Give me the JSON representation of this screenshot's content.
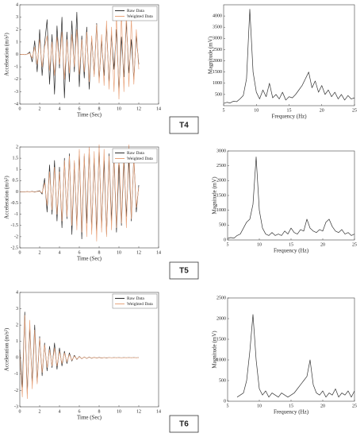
{
  "chart_data": [
    {
      "type": "line",
      "xlabel": "Time (Sec)",
      "ylabel": "Acceleration (m/s²)",
      "legend": "upper right",
      "xlim": [
        0,
        14
      ],
      "xticks": [
        0,
        2,
        4,
        6,
        8,
        10,
        12,
        14
      ],
      "ylim": [
        -4,
        4
      ],
      "yticks": [
        -4,
        -3,
        -2,
        -1,
        0,
        1,
        2,
        3,
        4
      ],
      "x": [
        0,
        0.25,
        0.5,
        0.75,
        1,
        1.25,
        1.5,
        1.75,
        2,
        2.25,
        2.5,
        2.75,
        3,
        3.25,
        3.5,
        3.75,
        4,
        4.25,
        4.5,
        4.75,
        5,
        5.25,
        5.5,
        5.75,
        6,
        6.25,
        6.5,
        6.75,
        7,
        7.25,
        7.5,
        7.75,
        8,
        8.25,
        8.5,
        8.75,
        9,
        9.25,
        9.5,
        9.75,
        10,
        10.25,
        10.5,
        10.75,
        11,
        11.25,
        11.5,
        11.75,
        12
      ],
      "series": [
        {
          "name": "Raw Data",
          "color": "#2b2b2b",
          "values": [
            0,
            0.01,
            -0.02,
            0.03,
            0.2,
            -0.6,
            1.1,
            -1.4,
            2.0,
            -1.7,
            0.9,
            2.8,
            -2.4,
            1.6,
            -3.2,
            2.3,
            -1.1,
            3.0,
            -3.5,
            1.8,
            -2.2,
            2.7,
            -1.4,
            3.4,
            -2.6,
            1.5,
            -1.9,
            2.2,
            -2.8,
            1.3,
            -1.6,
            2.5,
            -2.1,
            1.1,
            -1.7,
            2.3,
            -2.4,
            1.6,
            -1.2,
            2.0,
            -2.9,
            1.4,
            -1.8,
            2.6,
            -1.5,
            1.2,
            -2.0,
            1.5,
            -0.8
          ]
        },
        {
          "name": "Weighted Data",
          "color": "#e9a47c",
          "values": [
            0,
            0.01,
            -0.01,
            0.02,
            0.1,
            -0.3,
            0.6,
            -0.8,
            1.2,
            -1.0,
            0.6,
            1.5,
            -1.3,
            1.0,
            -1.7,
            1.4,
            -0.8,
            1.8,
            -2.0,
            1.2,
            -1.5,
            1.6,
            -1.0,
            2.0,
            -1.6,
            1.2,
            -1.4,
            1.8,
            -2.2,
            1.5,
            -1.8,
            2.4,
            -2.3,
            1.6,
            -2.5,
            2.7,
            -2.8,
            2.2,
            -3.0,
            3.2,
            -3.6,
            3.5,
            -3.0,
            3.4,
            -2.6,
            2.9,
            -2.4,
            2.0,
            -1.2
          ]
        }
      ]
    },
    {
      "type": "line",
      "xlabel": "Frequency (Hz)",
      "ylabel": "Magnitude (mV)",
      "color": "#333333",
      "xlim": [
        5,
        25
      ],
      "xticks": [
        5,
        10,
        15,
        20,
        25
      ],
      "ylim": [
        0,
        4500
      ],
      "yticks": [
        500,
        1000,
        1500,
        2000,
        2500,
        3000,
        3500,
        4000
      ],
      "x": [
        5,
        5.5,
        6,
        6.5,
        7,
        7.5,
        8,
        8.5,
        9,
        9.5,
        10,
        10.5,
        11,
        11.5,
        12,
        12.5,
        13,
        13.5,
        14,
        14.5,
        15,
        15.5,
        16,
        16.5,
        17,
        17.5,
        18,
        18.5,
        19,
        19.5,
        20,
        20.5,
        21,
        21.5,
        22,
        22.5,
        23,
        23.5,
        24,
        24.5,
        25
      ],
      "values": [
        100,
        150,
        120,
        200,
        180,
        300,
        450,
        1200,
        4300,
        1500,
        600,
        300,
        700,
        400,
        1000,
        350,
        500,
        300,
        600,
        250,
        400,
        350,
        500,
        700,
        900,
        1200,
        1500,
        800,
        1100,
        600,
        900,
        500,
        700,
        400,
        600,
        300,
        500,
        250,
        450,
        300,
        350
      ]
    },
    {
      "type": "line",
      "xlabel": "Time (Sec)",
      "ylabel": "Acceleration (m/s²)",
      "legend": "upper right",
      "xlim": [
        0,
        14
      ],
      "xticks": [
        0,
        2,
        4,
        6,
        8,
        10,
        12,
        14
      ],
      "ylim": [
        -2.5,
        2
      ],
      "yticks": [
        -2.5,
        -2,
        -1.5,
        -1,
        -0.5,
        0,
        0.5,
        1,
        1.5,
        2
      ],
      "x": [
        0,
        0.25,
        0.5,
        0.75,
        1,
        1.25,
        1.5,
        1.75,
        2,
        2.25,
        2.5,
        2.75,
        3,
        3.25,
        3.5,
        3.75,
        4,
        4.25,
        4.5,
        4.75,
        5,
        5.25,
        5.5,
        5.75,
        6,
        6.25,
        6.5,
        6.75,
        7,
        7.25,
        7.5,
        7.75,
        8,
        8.25,
        8.5,
        8.75,
        9,
        9.25,
        9.5,
        9.75,
        10,
        10.25,
        10.5,
        10.75,
        11,
        11.25,
        11.5,
        11.75,
        12
      ],
      "series": [
        {
          "name": "Raw Data",
          "color": "#2b2b2b",
          "values": [
            0,
            0,
            0,
            0.01,
            0,
            0.02,
            -0.01,
            0.02,
            0.05,
            -0.1,
            0.6,
            -0.9,
            1.2,
            -1.0,
            1.4,
            -1.3,
            1.1,
            -1.6,
            1.5,
            -1.2,
            1.7,
            -1.9,
            1.3,
            -1.5,
            1.8,
            -2.1,
            1.6,
            -1.4,
            1.9,
            -1.7,
            1.5,
            -1.8,
            2.0,
            -1.6,
            1.4,
            -1.9,
            1.7,
            -1.3,
            1.6,
            -1.8,
            1.2,
            -1.5,
            1.4,
            -1.1,
            1.5,
            -1.3,
            1.6,
            -0.9,
            0.3
          ]
        },
        {
          "name": "Weighted Data",
          "color": "#e9a47c",
          "values": [
            0,
            0,
            0,
            0.01,
            0,
            0.01,
            0,
            0.01,
            0.03,
            -0.05,
            0.4,
            -0.6,
            0.9,
            -0.8,
            1.1,
            -1.0,
            0.9,
            -1.3,
            1.4,
            -1.1,
            1.6,
            -1.5,
            1.4,
            -1.7,
            1.9,
            -1.8,
            1.7,
            -2.0,
            2.0,
            -1.9,
            1.8,
            -2.2,
            2.1,
            -1.8,
            1.9,
            -2.0,
            1.6,
            -1.7,
            1.8,
            -1.6,
            1.9,
            -1.4,
            1.8,
            -1.6,
            2.1,
            -1.2,
            1.5,
            -0.7,
            0.2
          ]
        }
      ]
    },
    {
      "type": "line",
      "xlabel": "Frequency (Hz)",
      "ylabel": "Magnitude (mV)",
      "color": "#333333",
      "xlim": [
        5,
        25
      ],
      "xticks": [
        5,
        10,
        15,
        20,
        25
      ],
      "ylim": [
        0,
        3000
      ],
      "yticks": [
        0,
        500,
        1000,
        1500,
        2000,
        2500,
        3000
      ],
      "x": [
        5,
        5.5,
        6,
        6.5,
        7,
        7.5,
        8,
        8.5,
        9,
        9.5,
        10,
        10.5,
        11,
        11.5,
        12,
        12.5,
        13,
        13.5,
        14,
        14.5,
        15,
        15.5,
        16,
        16.5,
        17,
        17.5,
        18,
        18.5,
        19,
        19.5,
        20,
        20.5,
        21,
        21.5,
        22,
        22.5,
        23,
        23.5,
        24,
        24.5,
        25
      ],
      "values": [
        50,
        80,
        60,
        150,
        200,
        400,
        600,
        700,
        1200,
        2800,
        1000,
        400,
        200,
        150,
        250,
        150,
        200,
        150,
        300,
        200,
        400,
        250,
        200,
        350,
        300,
        700,
        400,
        300,
        250,
        350,
        300,
        600,
        700,
        450,
        300,
        250,
        350,
        200,
        250,
        150,
        200
      ]
    },
    {
      "type": "line",
      "xlabel": "Time (Sec)",
      "ylabel": "Acceleration (m/s²)",
      "legend": "upper right",
      "xlim": [
        0,
        14
      ],
      "xticks": [
        0,
        2,
        4,
        6,
        8,
        10,
        12,
        14
      ],
      "ylim": [
        -3,
        4
      ],
      "yticks": [
        -3,
        -2,
        -1,
        0,
        1,
        2,
        3,
        4
      ],
      "x": [
        0,
        0.25,
        0.5,
        0.75,
        1,
        1.25,
        1.5,
        1.75,
        2,
        2.25,
        2.5,
        2.75,
        3,
        3.25,
        3.5,
        3.75,
        4,
        4.25,
        4.5,
        4.75,
        5,
        5.25,
        5.5,
        5.75,
        6,
        6.25,
        6.5,
        6.75,
        7,
        7.25,
        7.5,
        7.75,
        8,
        8.25,
        8.5,
        8.75,
        9,
        9.25,
        9.5,
        9.75,
        10,
        10.25,
        10.5,
        10.75,
        11,
        11.25,
        11.5,
        11.75,
        12
      ],
      "series": [
        {
          "name": "Raw Data",
          "color": "#2b2b2b",
          "values": [
            0.5,
            -1.8,
            2.8,
            -2.2,
            1.9,
            -1.6,
            2.0,
            -1.5,
            1.3,
            -1.1,
            0.9,
            -0.8,
            0.7,
            -0.6,
            0.9,
            -0.7,
            0.6,
            -0.5,
            0.4,
            -0.35,
            0.3,
            -0.2,
            0.15,
            -0.1,
            0.08,
            -0.06,
            0.05,
            -0.04,
            0.04,
            -0.03,
            0.03,
            -0.02,
            0.02,
            -0.02,
            0.01,
            -0.01,
            0.01,
            0,
            0.01,
            0,
            0.01,
            0,
            0.01,
            0,
            0.01,
            0,
            0.01,
            0,
            0.01
          ]
        },
        {
          "name": "Weighted Data",
          "color": "#e9a47c",
          "values": [
            0.3,
            -2.4,
            2.6,
            -2.5,
            2.3,
            -1.9,
            1.7,
            -1.6,
            1.2,
            -0.9,
            0.8,
            -0.6,
            0.5,
            -0.5,
            0.6,
            -0.5,
            0.4,
            -0.35,
            0.3,
            -0.25,
            0.2,
            -0.15,
            0.1,
            -0.08,
            0.06,
            -0.05,
            0.04,
            -0.03,
            0.03,
            -0.02,
            0.02,
            -0.01,
            0.01,
            -0.01,
            0.01,
            0,
            0.01,
            0,
            0,
            0.01,
            0,
            0,
            0,
            0.01,
            0,
            0.01,
            0,
            0.01,
            0
          ]
        }
      ]
    },
    {
      "type": "line",
      "xlabel": "Frequency (Hz)",
      "ylabel": "Magnitude (mV)",
      "color": "#333333",
      "xlim": [
        5,
        25
      ],
      "xticks": [
        5,
        10,
        15,
        20,
        25
      ],
      "ylim": [
        0,
        2500
      ],
      "yticks": [
        0,
        500,
        1000,
        1500,
        2000,
        2500
      ],
      "x": [
        5,
        5.5,
        6,
        6.5,
        7,
        7.5,
        8,
        8.5,
        9,
        9.5,
        10,
        10.5,
        11,
        11.5,
        12,
        12.5,
        13,
        13.5,
        14,
        14.5,
        15,
        15.5,
        16,
        16.5,
        17,
        17.5,
        18,
        18.5,
        19,
        19.5,
        20,
        20.5,
        21,
        21.5,
        22,
        22.5,
        23,
        23.5,
        24,
        24.5,
        25
      ],
      "values": [
        null,
        null,
        null,
        100,
        150,
        200,
        500,
        1200,
        2100,
        1000,
        300,
        150,
        250,
        100,
        200,
        150,
        100,
        200,
        150,
        100,
        150,
        200,
        300,
        400,
        500,
        600,
        1000,
        400,
        200,
        150,
        250,
        100,
        200,
        150,
        300,
        100,
        200,
        150,
        250,
        100,
        250
      ]
    }
  ],
  "panel_labels": [
    "T4",
    "T5",
    "T6"
  ]
}
